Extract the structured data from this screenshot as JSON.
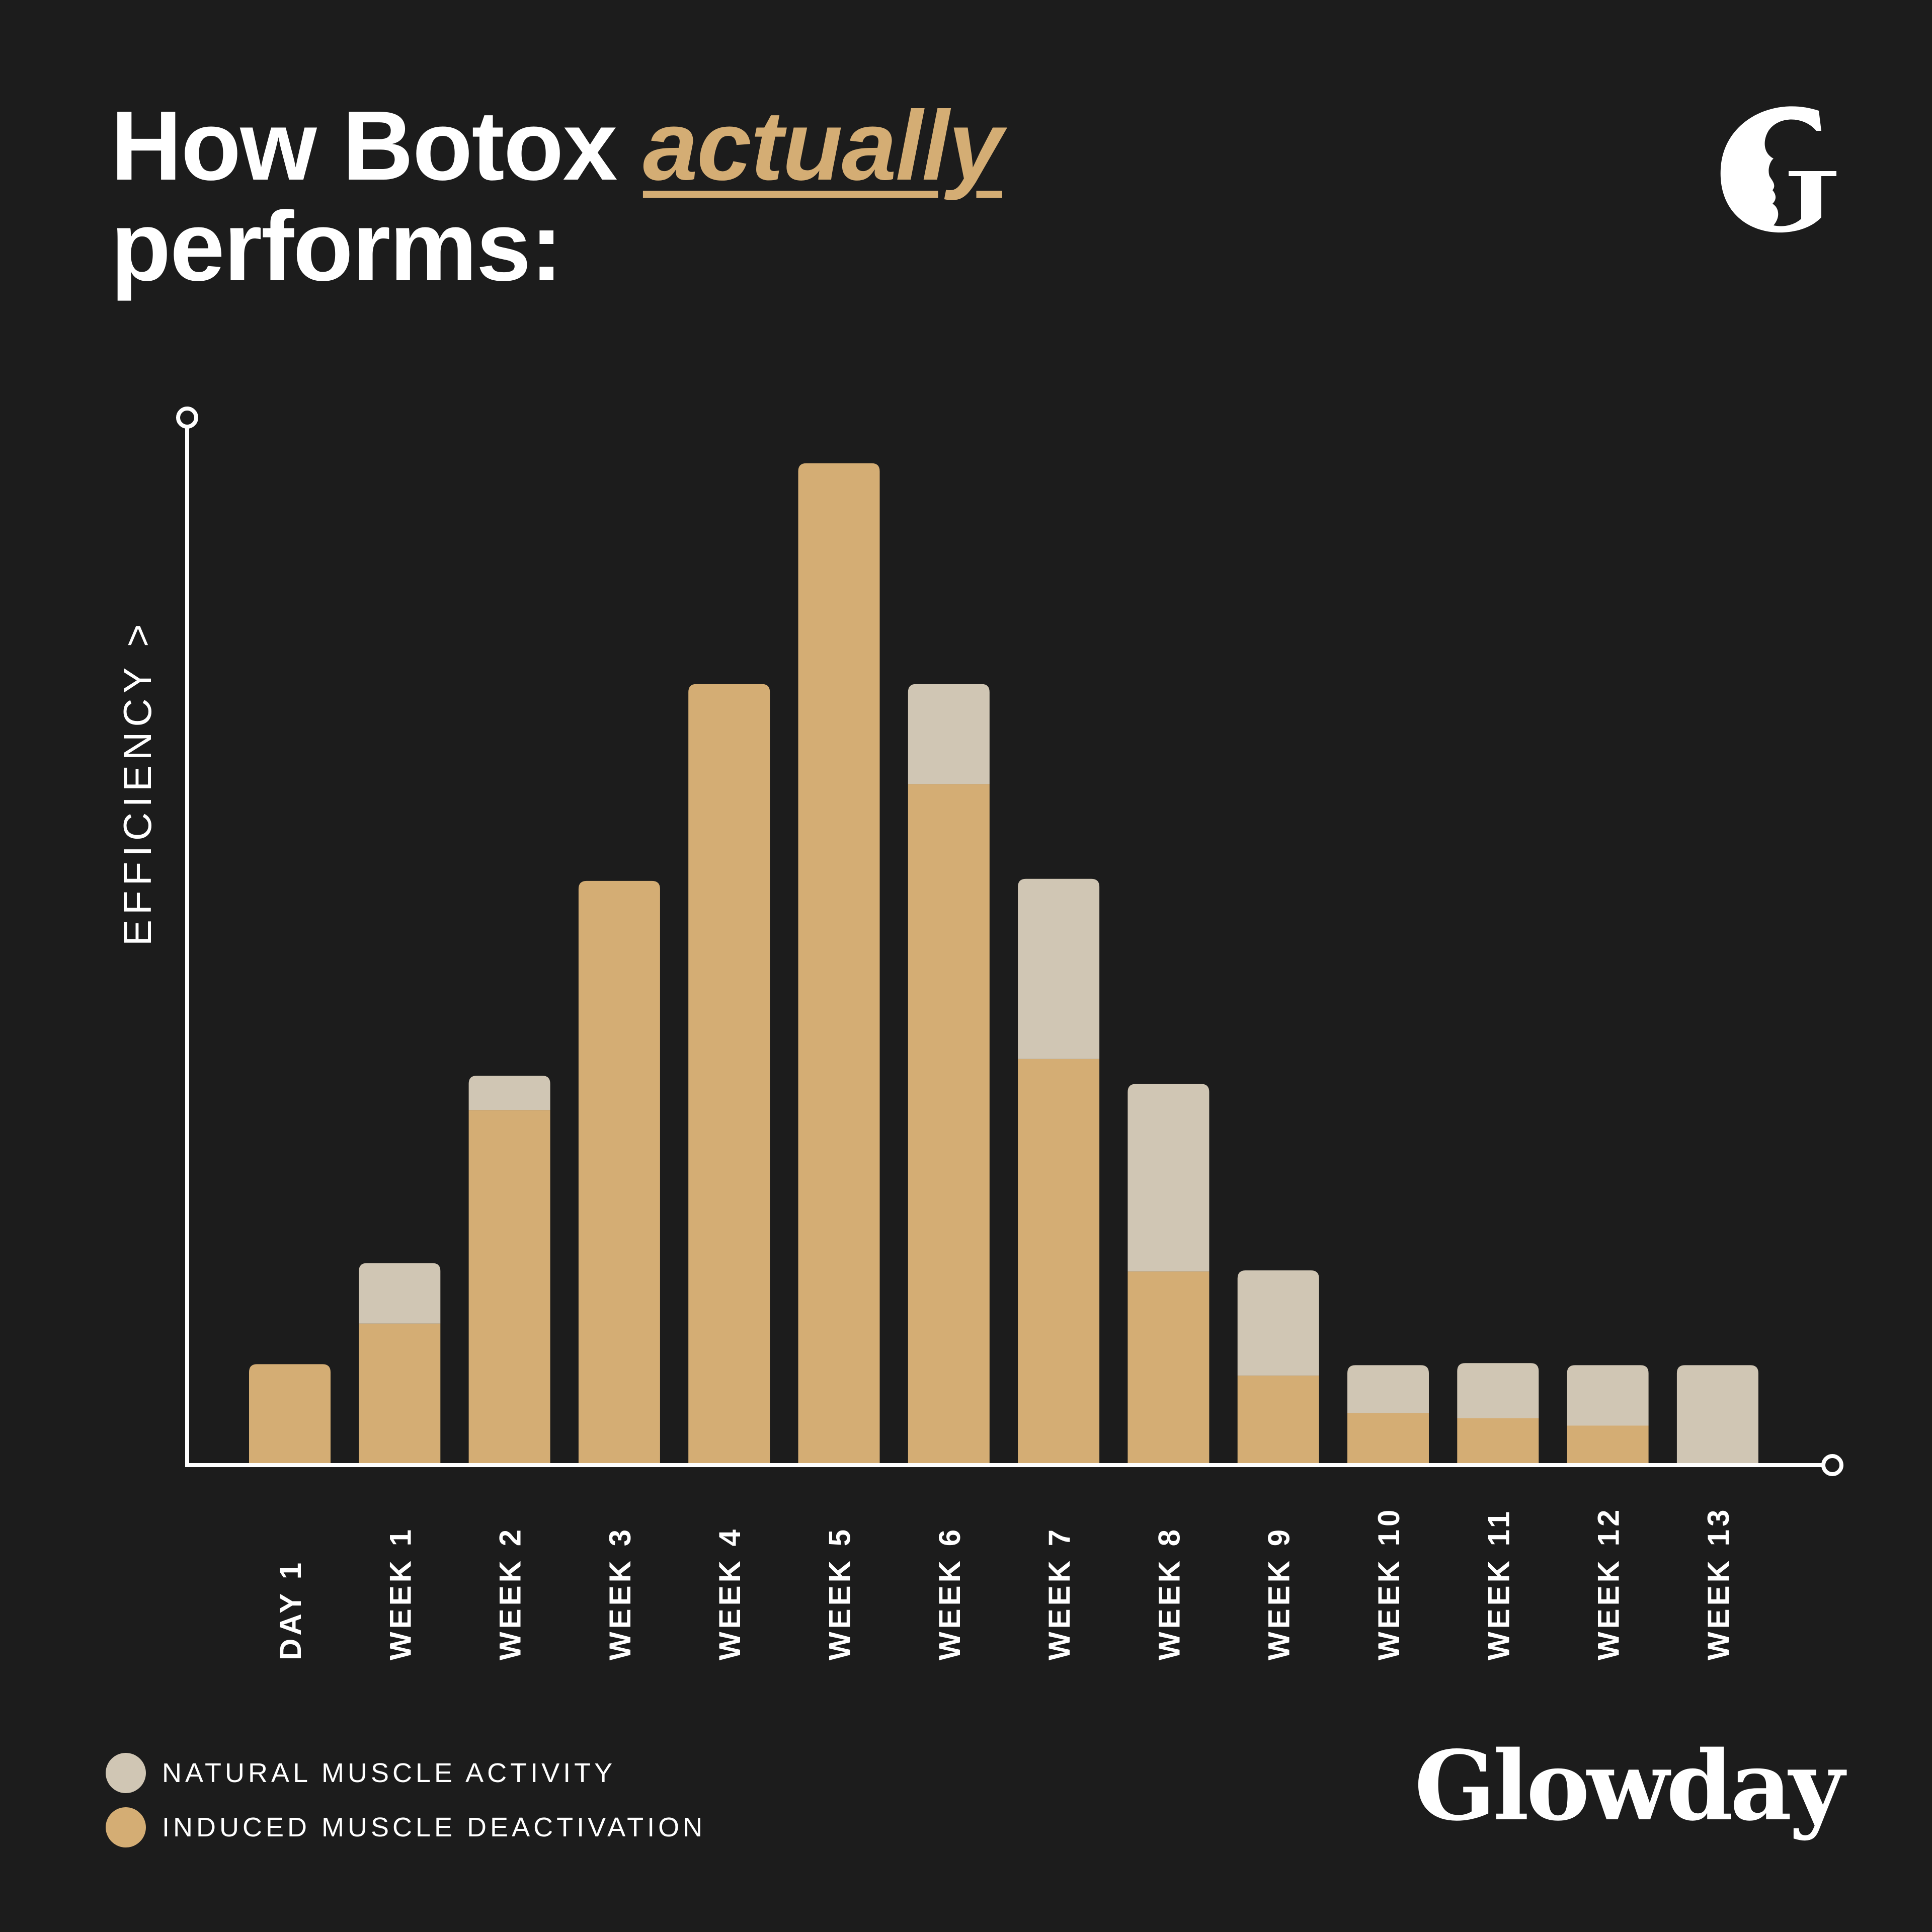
{
  "header": {
    "title_part1": "How Botox ",
    "title_accent": "actually",
    "title_part2": "performs:"
  },
  "logo": {
    "icon": "glowday-g-profile-icon"
  },
  "brand": {
    "name": "Glowday"
  },
  "colors": {
    "background": "#1c1c1c",
    "induced": "#d4ad74",
    "natural": "#d0c6b4",
    "axis": "#ffffff",
    "text": "#ffffff"
  },
  "legend": {
    "items": [
      {
        "label": "NATURAL MUSCLE ACTIVITY",
        "color": "#d0c6b4"
      },
      {
        "label": "INDUCED MUSCLE DEACTIVATION",
        "color": "#d4ad74"
      }
    ]
  },
  "chart_data": {
    "type": "bar",
    "stacked": true,
    "ylabel": "EFFICIENCY >",
    "xlabel": "",
    "ylim": [
      0,
      100
    ],
    "grid": false,
    "categories": [
      "DAY 1",
      "WEEK 1",
      "WEEK 2",
      "WEEK 3",
      "WEEK 4",
      "WEEK 5",
      "WEEK 6",
      "WEEK 7",
      "WEEK 8",
      "WEEK 9",
      "WEEK 10",
      "WEEK 11",
      "WEEK 12",
      "WEEK 13"
    ],
    "series": [
      {
        "name": "INDUCED MUSCLE DEACTIVATION",
        "color": "#d4ad74",
        "values": [
          9.5,
          13.4,
          33.9,
          55.9,
          74.8,
          96.0,
          65.2,
          38.8,
          18.4,
          8.4,
          4.8,
          4.3,
          3.6,
          0
        ]
      },
      {
        "name": "NATURAL MUSCLE ACTIVITY",
        "color": "#d0c6b4",
        "values": [
          0,
          5.8,
          3.3,
          0,
          0,
          0,
          9.6,
          17.3,
          18.0,
          10.1,
          4.6,
          5.3,
          5.8,
          9.4
        ]
      }
    ]
  }
}
